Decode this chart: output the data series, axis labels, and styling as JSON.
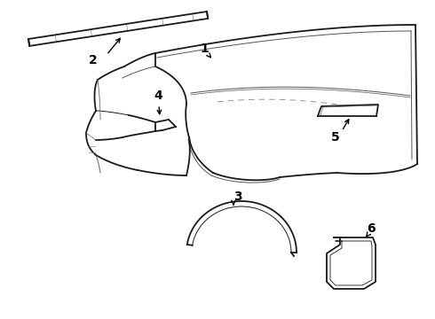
{
  "bg_color": "#ffffff",
  "line_color": "#1a1a1a",
  "label_color": "#000000",
  "lw_main": 1.3,
  "lw_thin": 0.7,
  "label_fontsize": 10
}
